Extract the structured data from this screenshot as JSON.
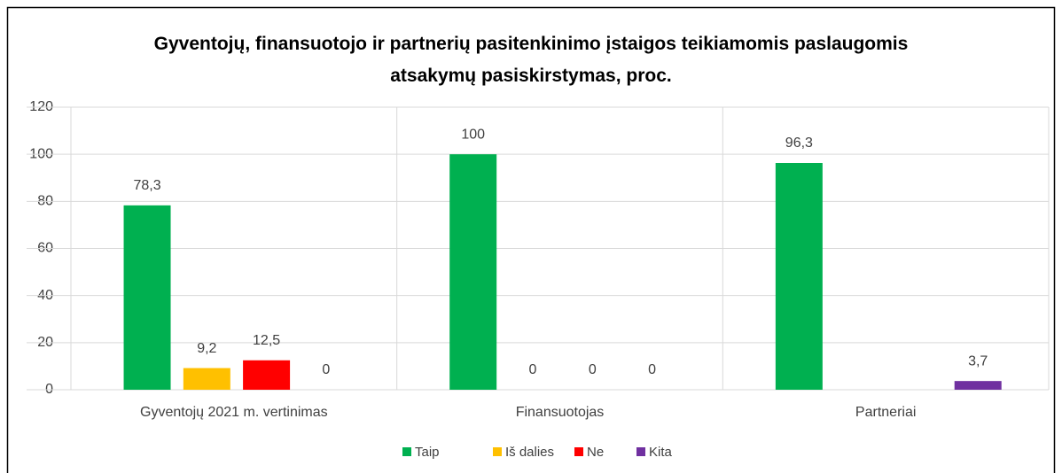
{
  "chart_data": {
    "type": "bar",
    "title": "Gyventojų, finansuotojo ir partnerių pasitenkinimo įstaigos teikiamomis paslaugomis atsakymų pasiskirstymas, proc.",
    "categories": [
      "Gyventojų 2021 m. vertinimas",
      "Finansuotojas",
      "Partneriai"
    ],
    "series": [
      {
        "name": "Taip",
        "color": "#00b050",
        "values": [
          78.3,
          100,
          96.3
        ],
        "value_labels": [
          "78,3",
          "100",
          "96,3"
        ]
      },
      {
        "name": "Iš dalies",
        "color": "#ffc000",
        "values": [
          9.2,
          0,
          null
        ],
        "value_labels": [
          "9,2",
          "0",
          null
        ]
      },
      {
        "name": "Ne",
        "color": "#ff0000",
        "values": [
          12.5,
          0,
          null
        ],
        "value_labels": [
          "12,5",
          "0",
          null
        ]
      },
      {
        "name": "Kita",
        "color": "#7030a0",
        "values": [
          0,
          0,
          3.7
        ],
        "value_labels": [
          "0",
          "0",
          "3,7"
        ]
      }
    ],
    "ylim": [
      0,
      120
    ],
    "yticks": [
      0,
      20,
      40,
      60,
      80,
      100,
      120
    ],
    "grid": true,
    "legend": "bottom"
  }
}
